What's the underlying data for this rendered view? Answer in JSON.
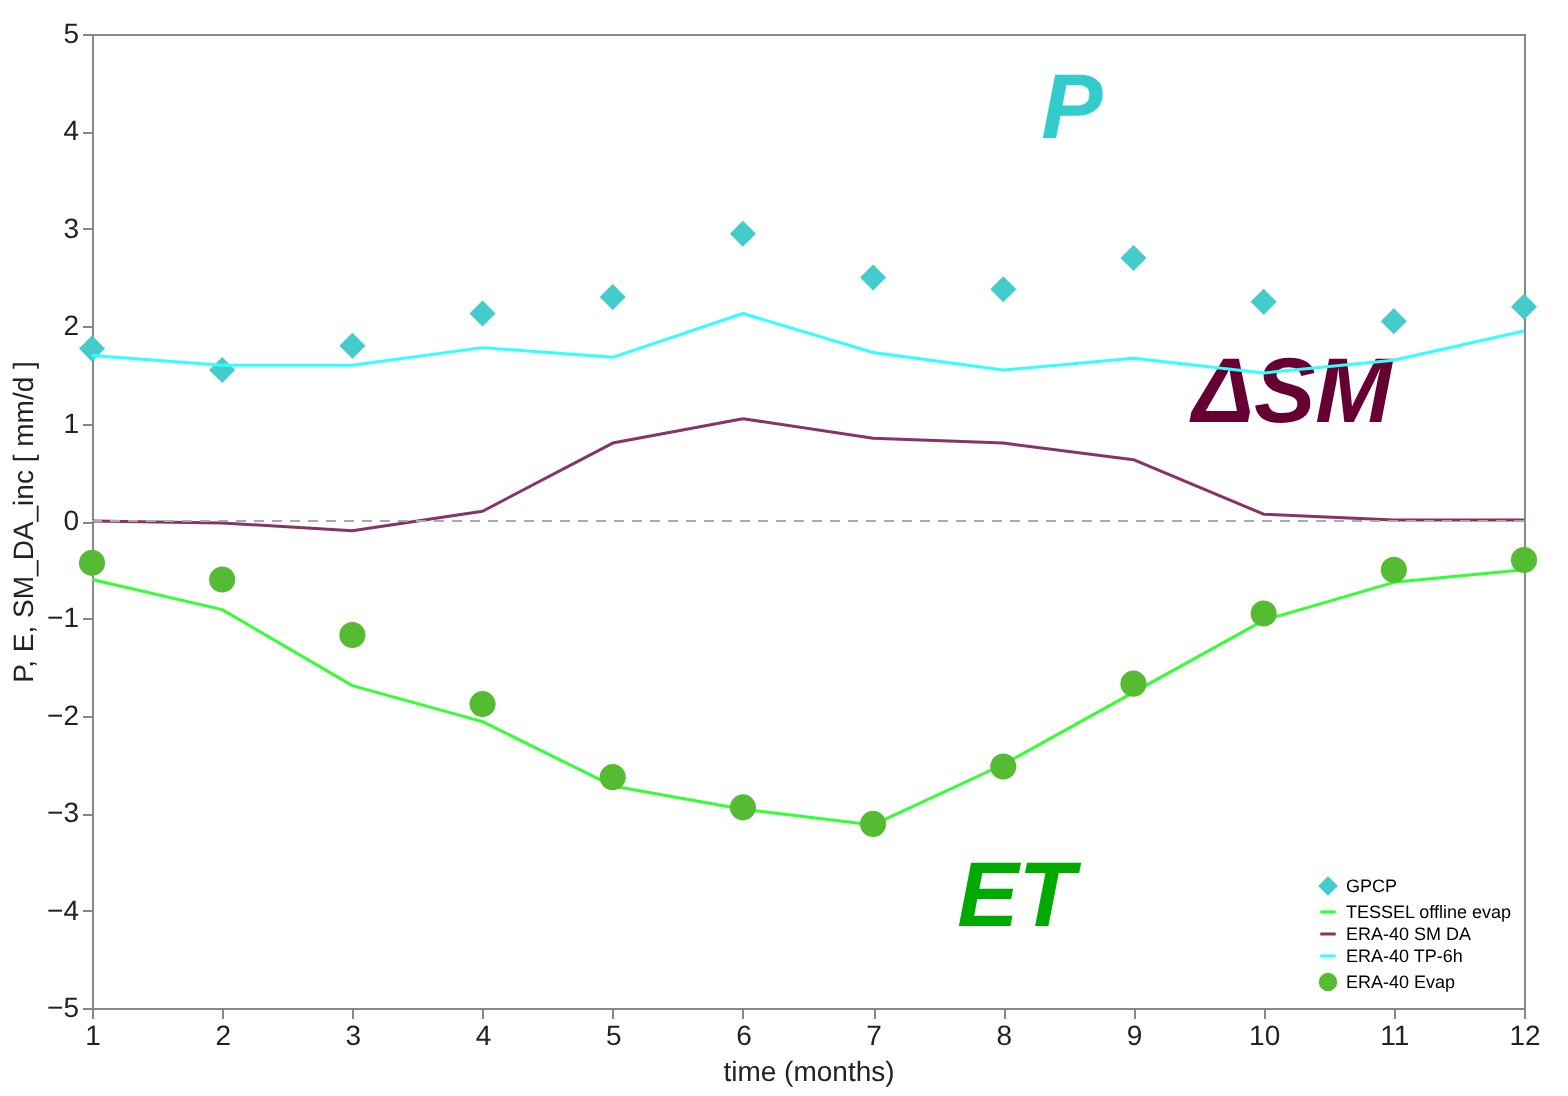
{
  "chart_data": {
    "type": "line",
    "xlabel": "time (months)",
    "ylabel": "P, E, SM_DA_inc [ mm/d ]",
    "x": [
      1,
      2,
      3,
      4,
      5,
      6,
      7,
      8,
      9,
      10,
      11,
      12
    ],
    "xlim": [
      1,
      12
    ],
    "xticks": [
      1,
      2,
      3,
      4,
      5,
      6,
      7,
      8,
      9,
      10,
      11,
      12
    ],
    "ylim": [
      -5,
      5
    ],
    "yticks": [
      -5,
      -4,
      -3,
      -2,
      -1,
      0,
      1,
      2,
      3,
      4,
      5
    ],
    "grid": false,
    "legend": "bottom right",
    "series": [
      {
        "name": "GPCP",
        "type": "scatter",
        "marker": "diamond",
        "color": "#44cccc",
        "values": [
          1.77,
          1.55,
          1.8,
          2.13,
          2.3,
          2.95,
          2.5,
          2.38,
          2.7,
          2.25,
          2.05,
          2.2
        ]
      },
      {
        "name": "TESSEL offline evap",
        "color": "#33ff33",
        "values": [
          -0.6,
          -0.91,
          -1.69,
          -2.06,
          -2.72,
          -2.96,
          -3.12,
          -2.5,
          -1.76,
          -1.02,
          -0.63,
          -0.5
        ]
      },
      {
        "name": "ERA-40 SM DA",
        "color": "#883366",
        "values": [
          0.0,
          -0.02,
          -0.1,
          0.1,
          0.8,
          1.05,
          0.85,
          0.8,
          0.63,
          0.07,
          0.01,
          0.01
        ]
      },
      {
        "name": "ERA-40 TP-6h",
        "color": "#33ffff",
        "values": [
          1.7,
          1.6,
          1.6,
          1.78,
          1.68,
          2.13,
          1.73,
          1.55,
          1.67,
          1.52,
          1.65,
          1.95
        ]
      },
      {
        "name": "ERA-40 Evap",
        "type": "scatter",
        "marker": "circle",
        "color": "#55bb33",
        "values": [
          -0.43,
          -0.6,
          -1.17,
          -1.88,
          -2.63,
          -2.94,
          -3.11,
          -2.52,
          -1.67,
          -0.95,
          -0.5,
          -0.4
        ]
      }
    ],
    "ref_lines": [
      {
        "axis": "y",
        "value": 0,
        "color": "#aaaaaa",
        "line_style": "dashed"
      }
    ],
    "annotations": [
      "P",
      "ΔSM",
      "ET"
    ]
  }
}
